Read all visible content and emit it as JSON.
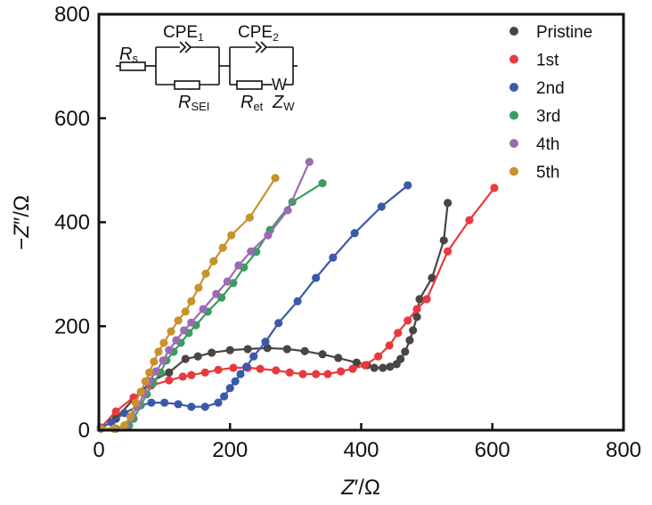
{
  "chart_data": {
    "type": "scatter",
    "title": "",
    "xlabel": "Z′/Ω",
    "ylabel": "−Z″/Ω",
    "xlim": [
      0,
      800
    ],
    "ylim": [
      0,
      800
    ],
    "xticks": [
      "0",
      "200",
      "400",
      "600",
      "800"
    ],
    "yticks": [
      "0",
      "200",
      "400",
      "600",
      "800"
    ],
    "grid": false,
    "legend_position": "top-right",
    "series": [
      {
        "name": "Pristine",
        "color": "#4a4443",
        "points": [
          [
            3,
            3
          ],
          [
            26,
            22
          ],
          [
            53,
            60
          ],
          [
            80,
            94
          ],
          [
            107,
            111
          ],
          [
            132,
            137
          ],
          [
            151,
            142
          ],
          [
            172,
            149
          ],
          [
            200,
            154
          ],
          [
            227,
            156
          ],
          [
            257,
            158
          ],
          [
            287,
            156
          ],
          [
            314,
            152
          ],
          [
            341,
            146
          ],
          [
            365,
            139
          ],
          [
            393,
            130
          ],
          [
            409,
            125
          ],
          [
            420,
            120
          ],
          [
            433,
            120
          ],
          [
            444,
            122
          ],
          [
            454,
            127
          ],
          [
            460,
            137
          ],
          [
            467,
            151
          ],
          [
            474,
            173
          ],
          [
            479,
            192
          ],
          [
            485,
            218
          ],
          [
            489,
            252
          ],
          [
            508,
            293
          ],
          [
            526,
            365
          ],
          [
            532,
            437
          ]
        ]
      },
      {
        "name": "1st",
        "color": "#e8393f",
        "points": [
          [
            3,
            5
          ],
          [
            26,
            36
          ],
          [
            53,
            63
          ],
          [
            80,
            86
          ],
          [
            107,
            96
          ],
          [
            128,
            103
          ],
          [
            141,
            106
          ],
          [
            162,
            111
          ],
          [
            182,
            116
          ],
          [
            205,
            120
          ],
          [
            227,
            120
          ],
          [
            246,
            118
          ],
          [
            270,
            115
          ],
          [
            291,
            111
          ],
          [
            311,
            108
          ],
          [
            331,
            108
          ],
          [
            349,
            108
          ],
          [
            369,
            113
          ],
          [
            387,
            118
          ],
          [
            406,
            125
          ],
          [
            426,
            142
          ],
          [
            443,
            163
          ],
          [
            456,
            187
          ],
          [
            471,
            211
          ],
          [
            485,
            233
          ],
          [
            500,
            252
          ],
          [
            532,
            344
          ],
          [
            565,
            404
          ],
          [
            603,
            466
          ]
        ]
      },
      {
        "name": "2nd",
        "color": "#3a5aa8",
        "points": [
          [
            3,
            5
          ],
          [
            19,
            15
          ],
          [
            39,
            33
          ],
          [
            60,
            46
          ],
          [
            80,
            53
          ],
          [
            100,
            53
          ],
          [
            121,
            50
          ],
          [
            141,
            45
          ],
          [
            162,
            45
          ],
          [
            182,
            53
          ],
          [
            191,
            65
          ],
          [
            200,
            81
          ],
          [
            208,
            94
          ],
          [
            216,
            108
          ],
          [
            225,
            122
          ],
          [
            236,
            142
          ],
          [
            254,
            170
          ],
          [
            274,
            206
          ],
          [
            303,
            248
          ],
          [
            331,
            293
          ],
          [
            357,
            332
          ],
          [
            390,
            379
          ],
          [
            431,
            430
          ],
          [
            471,
            471
          ]
        ]
      },
      {
        "name": "3rd",
        "color": "#3c9c5e",
        "points": [
          [
            3,
            3
          ],
          [
            26,
            3
          ],
          [
            46,
            9
          ],
          [
            53,
            22
          ],
          [
            64,
            48
          ],
          [
            73,
            69
          ],
          [
            83,
            91
          ],
          [
            94,
            111
          ],
          [
            103,
            134
          ],
          [
            114,
            151
          ],
          [
            125,
            168
          ],
          [
            137,
            187
          ],
          [
            148,
            202
          ],
          [
            166,
            228
          ],
          [
            187,
            255
          ],
          [
            205,
            283
          ],
          [
            221,
            313
          ],
          [
            240,
            343
          ],
          [
            261,
            385
          ],
          [
            295,
            439
          ],
          [
            341,
            475
          ]
        ]
      },
      {
        "name": "4th",
        "color": "#9b6bb4",
        "points": [
          [
            3,
            3
          ],
          [
            23,
            3
          ],
          [
            42,
            10
          ],
          [
            50,
            26
          ],
          [
            60,
            48
          ],
          [
            69,
            70
          ],
          [
            77,
            94
          ],
          [
            87,
            113
          ],
          [
            98,
            134
          ],
          [
            107,
            154
          ],
          [
            118,
            173
          ],
          [
            130,
            192
          ],
          [
            141,
            207
          ],
          [
            159,
            233
          ],
          [
            179,
            262
          ],
          [
            196,
            286
          ],
          [
            213,
            317
          ],
          [
            232,
            344
          ],
          [
            258,
            375
          ],
          [
            288,
            423
          ],
          [
            321,
            516
          ]
        ]
      },
      {
        "name": "5th",
        "color": "#c8922e",
        "points": [
          [
            3,
            3
          ],
          [
            23,
            3
          ],
          [
            39,
            9
          ],
          [
            48,
            26
          ],
          [
            56,
            53
          ],
          [
            64,
            74
          ],
          [
            71,
            94
          ],
          [
            77,
            111
          ],
          [
            84,
            132
          ],
          [
            91,
            151
          ],
          [
            99,
            168
          ],
          [
            110,
            190
          ],
          [
            121,
            211
          ],
          [
            132,
            228
          ],
          [
            141,
            248
          ],
          [
            152,
            274
          ],
          [
            163,
            301
          ],
          [
            175,
            325
          ],
          [
            189,
            351
          ],
          [
            202,
            375
          ],
          [
            230,
            409
          ],
          [
            269,
            485
          ]
        ]
      }
    ],
    "annotations": {
      "circuit": {
        "elements": [
          "R_s",
          "CPE_1",
          "R_SEI",
          "CPE_2",
          "R_et",
          "W",
          "Z_W"
        ],
        "labels": {
          "rs_main": "R",
          "rs_sub": "s",
          "cpe1_main": "CPE",
          "cpe1_sub": "1",
          "rsei_main": "R",
          "rsei_sub": "SEI",
          "cpe2_main": "CPE",
          "cpe2_sub": "2",
          "ret_main": "R",
          "ret_sub": "et",
          "w": "W",
          "zw_main": "Z",
          "zw_sub": "W"
        }
      }
    }
  }
}
